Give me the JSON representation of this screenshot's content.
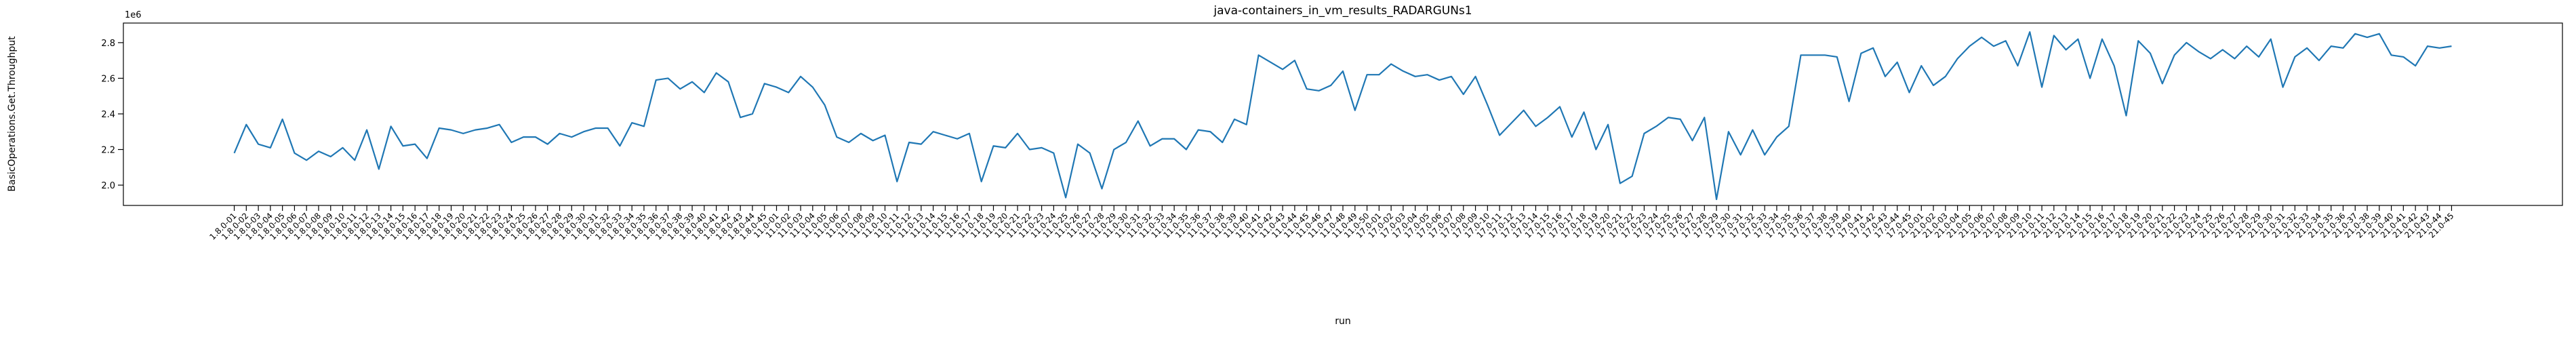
{
  "chart_data": {
    "type": "line",
    "title": "java-containers_in_vm_results_RADARGUNs1",
    "xlabel": "run",
    "ylabel": "BasicOperations.Get.Throughput",
    "y_offset_label": "1e6",
    "categories": [
      "1.8.0-01",
      "1.8.0-02",
      "1.8.0-03",
      "1.8.0-04",
      "1.8.0-05",
      "1.8.0-06",
      "1.8.0-07",
      "1.8.0-08",
      "1.8.0-09",
      "1.8.0-10",
      "1.8.0-11",
      "1.8.0-12",
      "1.8.0-13",
      "1.8.0-14",
      "1.8.0-15",
      "1.8.0-16",
      "1.8.0-17",
      "1.8.0-18",
      "1.8.0-19",
      "1.8.0-20",
      "1.8.0-21",
      "1.8.0-22",
      "1.8.0-23",
      "1.8.0-24",
      "1.8.0-25",
      "1.8.0-26",
      "1.8.0-27",
      "1.8.0-28",
      "1.8.0-29",
      "1.8.0-30",
      "1.8.0-31",
      "1.8.0-32",
      "1.8.0-33",
      "1.8.0-34",
      "1.8.0-35",
      "1.8.0-36",
      "1.8.0-37",
      "1.8.0-38",
      "1.8.0-39",
      "1.8.0-40",
      "1.8.0-41",
      "1.8.0-42",
      "1.8.0-43",
      "1.8.0-44",
      "1.8.0-45",
      "11.0-01",
      "11.0-02",
      "11.0-03",
      "11.0-04",
      "11.0-05",
      "11.0-06",
      "11.0-07",
      "11.0-08",
      "11.0-09",
      "11.0-10",
      "11.0-11",
      "11.0-12",
      "11.0-13",
      "11.0-14",
      "11.0-15",
      "11.0-16",
      "11.0-17",
      "11.0-18",
      "11.0-19",
      "11.0-20",
      "11.0-21",
      "11.0-22",
      "11.0-23",
      "11.0-24",
      "11.0-25",
      "11.0-26",
      "11.0-27",
      "11.0-28",
      "11.0-29",
      "11.0-30",
      "11.0-31",
      "11.0-32",
      "11.0-33",
      "11.0-34",
      "11.0-35",
      "11.0-36",
      "11.0-37",
      "11.0-38",
      "11.0-39",
      "11.0-40",
      "11.0-41",
      "11.0-42",
      "11.0-43",
      "11.0-44",
      "11.0-45",
      "11.0-46",
      "11.0-47",
      "11.0-48",
      "11.0-49",
      "11.0-50",
      "17.0-01",
      "17.0-02",
      "17.0-03",
      "17.0-04",
      "17.0-05",
      "17.0-06",
      "17.0-07",
      "17.0-08",
      "17.0-09",
      "17.0-10",
      "17.0-11",
      "17.0-12",
      "17.0-13",
      "17.0-14",
      "17.0-15",
      "17.0-16",
      "17.0-17",
      "17.0-18",
      "17.0-19",
      "17.0-20",
      "17.0-21",
      "17.0-22",
      "17.0-23",
      "17.0-24",
      "17.0-25",
      "17.0-26",
      "17.0-27",
      "17.0-28",
      "17.0-29",
      "17.0-30",
      "17.0-31",
      "17.0-32",
      "17.0-33",
      "17.0-34",
      "17.0-35",
      "17.0-36",
      "17.0-37",
      "17.0-38",
      "17.0-39",
      "17.0-40",
      "17.0-41",
      "17.0-42",
      "17.0-43",
      "17.0-44",
      "17.0-45",
      "21.0-01",
      "21.0-02",
      "21.0-03",
      "21.0-04",
      "21.0-05",
      "21.0-06",
      "21.0-07",
      "21.0-08",
      "21.0-09",
      "21.0-10",
      "21.0-11",
      "21.0-12",
      "21.0-13",
      "21.0-14",
      "21.0-15",
      "21.0-16",
      "21.0-17",
      "21.0-18",
      "21.0-19",
      "21.0-20",
      "21.0-21",
      "21.0-22",
      "21.0-23",
      "21.0-24",
      "21.0-25",
      "21.0-26",
      "21.0-27",
      "21.0-28",
      "21.0-29",
      "21.0-30",
      "21.0-31",
      "21.0-32",
      "21.0-33",
      "21.0-34",
      "21.0-35",
      "21.0-36",
      "21.0-37",
      "21.0-38",
      "21.0-39",
      "21.0-40",
      "21.0-41",
      "21.0-42",
      "21.0-43",
      "21.0-44",
      "21.0-45"
    ],
    "series": [
      {
        "color": "#1f77b4",
        "values": [
          2.18,
          2.34,
          2.23,
          2.21,
          2.37,
          2.18,
          2.14,
          2.19,
          2.16,
          2.21,
          2.14,
          2.31,
          2.09,
          2.33,
          2.22,
          2.23,
          2.15,
          2.32,
          2.31,
          2.29,
          2.31,
          2.32,
          2.34,
          2.24,
          2.27,
          2.27,
          2.23,
          2.29,
          2.27,
          2.3,
          2.32,
          2.32,
          2.22,
          2.35,
          2.33,
          2.59,
          2.6,
          2.54,
          2.58,
          2.52,
          2.63,
          2.58,
          2.38,
          2.4,
          2.57,
          2.55,
          2.52,
          2.61,
          2.55,
          2.45,
          2.27,
          2.24,
          2.29,
          2.25,
          2.28,
          2.02,
          2.24,
          2.23,
          2.3,
          2.28,
          2.26,
          2.29,
          2.02,
          2.22,
          2.21,
          2.29,
          2.2,
          2.21,
          2.18,
          1.93,
          2.23,
          2.18,
          1.98,
          2.2,
          2.24,
          2.36,
          2.22,
          2.26,
          2.26,
          2.2,
          2.31,
          2.3,
          2.24,
          2.37,
          2.34,
          2.73,
          2.69,
          2.65,
          2.7,
          2.54,
          2.53,
          2.56,
          2.64,
          2.42,
          2.62,
          2.62,
          2.68,
          2.64,
          2.61,
          2.62,
          2.59,
          2.61,
          2.51,
          2.61,
          2.45,
          2.28,
          2.35,
          2.42,
          2.33,
          2.38,
          2.44,
          2.27,
          2.41,
          2.2,
          2.34,
          2.01,
          2.05,
          2.29,
          2.33,
          2.38,
          2.37,
          2.25,
          2.38,
          1.92,
          2.3,
          2.17,
          2.31,
          2.17,
          2.27,
          2.33,
          2.73,
          2.73,
          2.73,
          2.72,
          2.47,
          2.74,
          2.77,
          2.61,
          2.69,
          2.52,
          2.67,
          2.56,
          2.61,
          2.71,
          2.78,
          2.83,
          2.78,
          2.81,
          2.67,
          2.86,
          2.55,
          2.84,
          2.76,
          2.82,
          2.6,
          2.82,
          2.67,
          2.39,
          2.81,
          2.74,
          2.57,
          2.73,
          2.8,
          2.75,
          2.71,
          2.76,
          2.71,
          2.78,
          2.72,
          2.82,
          2.55,
          2.72,
          2.77,
          2.7,
          2.78,
          2.77,
          2.85,
          2.83,
          2.85,
          2.73,
          2.72,
          2.67,
          2.78,
          2.77,
          2.78
        ]
      }
    ],
    "ylim": [
      1.886,
      2.91
    ],
    "yticks": [
      {
        "value": 2,
        "label": "2.0"
      },
      2.2,
      2.4,
      2.6,
      2.8
    ],
    "grid": false
  }
}
